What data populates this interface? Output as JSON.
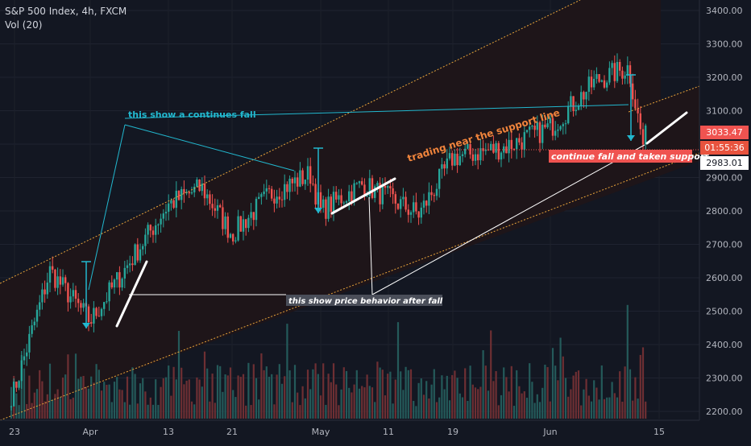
{
  "legend": {
    "title": "S&P 500 Index, 4h, FXCM",
    "volume": "Vol (20)"
  },
  "colors": {
    "background": "#131722",
    "channel_fill": "#1e1519",
    "channel_line": "#e8a33a",
    "up": "#26a69a",
    "down": "#ef5350",
    "cyan": "#22b8cf",
    "white": "#ffffff",
    "orange": "#f0843c",
    "last_price_bg": "#ef5350",
    "countdown_bg": "#e8533e",
    "level_bg": "#ffffff"
  },
  "price_axis": {
    "ticks": [
      "3400.00",
      "3300.00",
      "3200.00",
      "3100.00",
      "3000.00",
      "2900.00",
      "2800.00",
      "2700.00",
      "2600.00",
      "2500.00",
      "2400.00",
      "2300.00",
      "2200.00"
    ],
    "last_price": "3033.47",
    "countdown": "01:55:36",
    "level": "2983.01"
  },
  "time_axis": {
    "ticks": [
      "23",
      "Apr",
      "13",
      "21",
      "May",
      "11",
      "19",
      "Jun",
      "15"
    ]
  },
  "annotations": {
    "continues_fall": "this show a continues fall",
    "support_trading": "trading near the support line",
    "after_fall": "this show price behavior after fall",
    "taken_support": "continue fall and taken support"
  },
  "chart_data": {
    "type": "candlestick",
    "title": "S&P 500 Index, 4h, FXCM",
    "series": [
      {
        "name": "S&P 500 Index",
        "kind": "candles_approx",
        "x": [
          "Mar 23",
          "Mar 27",
          "Apr 1",
          "Apr 7",
          "Apr 13",
          "Apr 17",
          "Apr 21",
          "Apr 27",
          "May 1",
          "May 4",
          "May 8",
          "May 13",
          "May 19",
          "May 26",
          "Jun 1",
          "Jun 5",
          "Jun 9",
          "Jun 11",
          "Jun 12"
        ],
        "values": [
          2250,
          2620,
          2470,
          2680,
          2820,
          2870,
          2730,
          2850,
          2910,
          2800,
          2880,
          2790,
          2960,
          2990,
          3050,
          3190,
          3230,
          3000,
          3033
        ]
      },
      {
        "name": "Vol (20)",
        "kind": "volume"
      }
    ],
    "ylim": [
      2180,
      3430
    ],
    "last": 3033.47,
    "level": 2983.01
  }
}
